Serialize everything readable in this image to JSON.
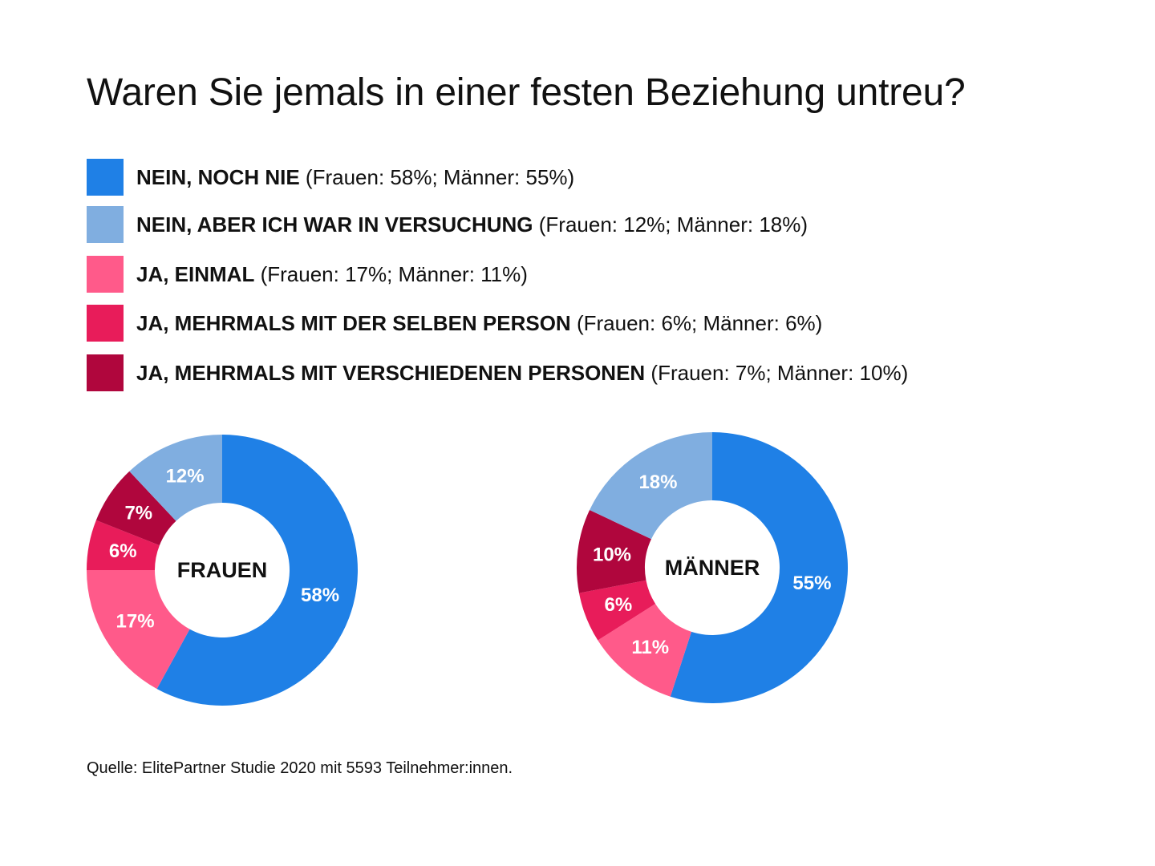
{
  "title": "Waren Sie jemals in einer festen Beziehung untreu?",
  "legend": [
    {
      "label": "NEIN, NOCH NIE",
      "stats": "(Frauen: 58%; Männer: 55%)",
      "color": "#1f80e6"
    },
    {
      "label": "NEIN, ABER ICH WAR IN VERSUCHUNG",
      "stats": "(Frauen: 12%; Männer: 18%)",
      "color": "#80aee0"
    },
    {
      "label": "JA, EINMAL",
      "stats": "(Frauen: 17%; Männer: 11%)",
      "color": "#ff5a8a"
    },
    {
      "label": "JA, MEHRMALS MIT DER SELBEN PERSON",
      "stats": "(Frauen: 6%; Männer: 6%)",
      "color": "#e81c5a"
    },
    {
      "label": "JA, MEHRMALS MIT VERSCHIEDENEN PERSONEN",
      "stats": "(Frauen: 7%; Männer: 10%)",
      "color": "#b0063d"
    }
  ],
  "chart_data": [
    {
      "type": "pie",
      "variant": "donut",
      "center_label": "FRAUEN",
      "slices": [
        {
          "category": "NEIN, NOCH NIE",
          "value": 58,
          "label": "58%",
          "color": "#1f80e6"
        },
        {
          "category": "JA, EINMAL",
          "value": 17,
          "label": "17%",
          "color": "#ff5a8a"
        },
        {
          "category": "JA, MEHRMALS MIT DER SELBEN PERSON",
          "value": 6,
          "label": "6%",
          "color": "#e81c5a"
        },
        {
          "category": "JA, MEHRMALS MIT VERSCHIEDENEN PERSONEN",
          "value": 7,
          "label": "7%",
          "color": "#b0063d"
        },
        {
          "category": "NEIN, ABER ICH WAR IN VERSUCHUNG",
          "value": 12,
          "label": "12%",
          "color": "#80aee0"
        }
      ]
    },
    {
      "type": "pie",
      "variant": "donut",
      "center_label": "MÄNNER",
      "slices": [
        {
          "category": "NEIN, NOCH NIE",
          "value": 55,
          "label": "55%",
          "color": "#1f80e6"
        },
        {
          "category": "JA, EINMAL",
          "value": 11,
          "label": "11%",
          "color": "#ff5a8a"
        },
        {
          "category": "JA, MEHRMALS MIT DER SELBEN PERSON",
          "value": 6,
          "label": "6%",
          "color": "#e81c5a"
        },
        {
          "category": "JA, MEHRMALS MIT VERSCHIEDENEN PERSONEN",
          "value": 10,
          "label": "10%",
          "color": "#b0063d"
        },
        {
          "category": "NEIN, ABER ICH WAR IN VERSUCHUNG",
          "value": 18,
          "label": "18%",
          "color": "#80aee0"
        }
      ]
    }
  ],
  "source": "Quelle: ElitePartner Studie 2020 mit 5593 Teilnehmer:innen."
}
